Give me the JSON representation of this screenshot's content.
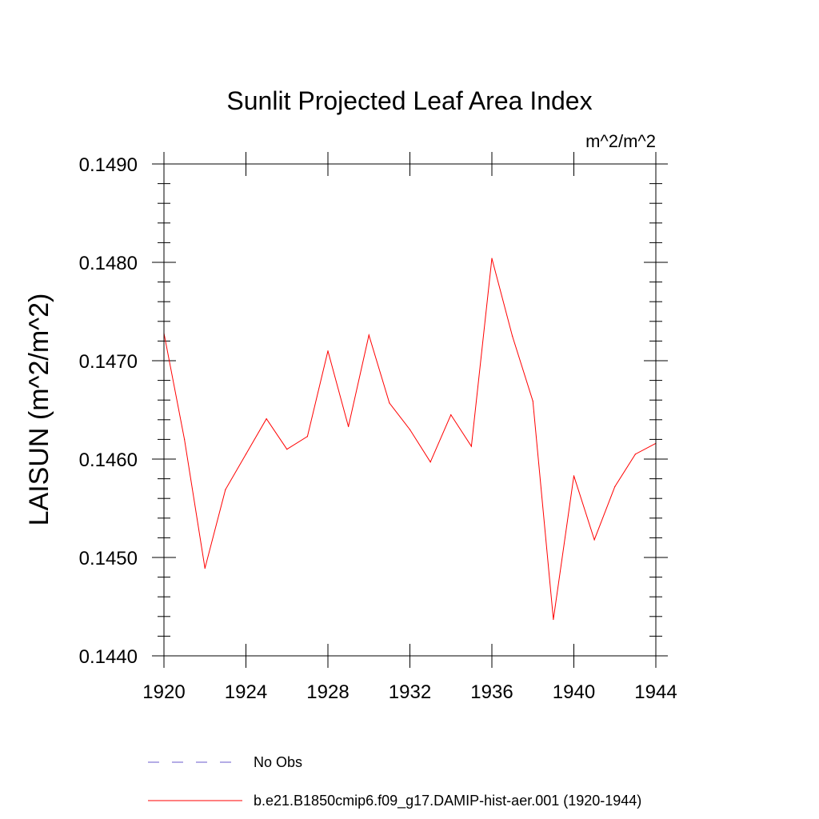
{
  "chart_data": {
    "type": "line",
    "title": "Sunlit Projected Leaf Area Index",
    "units": "m^2/m^2",
    "ylabel": "LAISUN  (m^2/m^2)",
    "xlabel": "",
    "xlim": [
      1920,
      1944
    ],
    "ylim": [
      0.144,
      0.149
    ],
    "x_ticks": [
      1920,
      1924,
      1928,
      1932,
      1936,
      1940,
      1944
    ],
    "x_tick_labels": [
      "1920",
      "1924",
      "1928",
      "1932",
      "1936",
      "1940",
      "1944"
    ],
    "y_ticks": [
      0.144,
      0.145,
      0.146,
      0.147,
      0.148,
      0.149
    ],
    "y_tick_labels": [
      "0.1440",
      "0.1450",
      "0.1460",
      "0.1470",
      "0.1480",
      "0.1490"
    ],
    "grid": false,
    "legend_position": "bottom",
    "series": [
      {
        "name": "b.e21.B1850cmip6.f09_g17.DAMIP-hist-aer.001 (1920-1944)",
        "color": "#ff0000",
        "style": "solid",
        "x": [
          1920,
          1921,
          1922,
          1923,
          1924,
          1925,
          1926,
          1927,
          1928,
          1929,
          1930,
          1931,
          1932,
          1933,
          1934,
          1935,
          1936,
          1937,
          1938,
          1939,
          1940,
          1941,
          1942,
          1943,
          1944
        ],
        "y": [
          0.14728,
          0.1462,
          0.14489,
          0.14569,
          0.14605,
          0.14641,
          0.1461,
          0.14623,
          0.1471,
          0.14633,
          0.14726,
          0.14657,
          0.1463,
          0.14597,
          0.14645,
          0.14613,
          0.14804,
          0.14725,
          0.14659,
          0.14437,
          0.14583,
          0.14518,
          0.14572,
          0.14605,
          0.14616
        ]
      }
    ],
    "legend": [
      {
        "label": "No Obs",
        "color": "#6a5acd",
        "style": "dashed"
      },
      {
        "label": "b.e21.B1850cmip6.f09_g17.DAMIP-hist-aer.001 (1920-1944)",
        "color": "#ff0000",
        "style": "solid"
      }
    ]
  }
}
